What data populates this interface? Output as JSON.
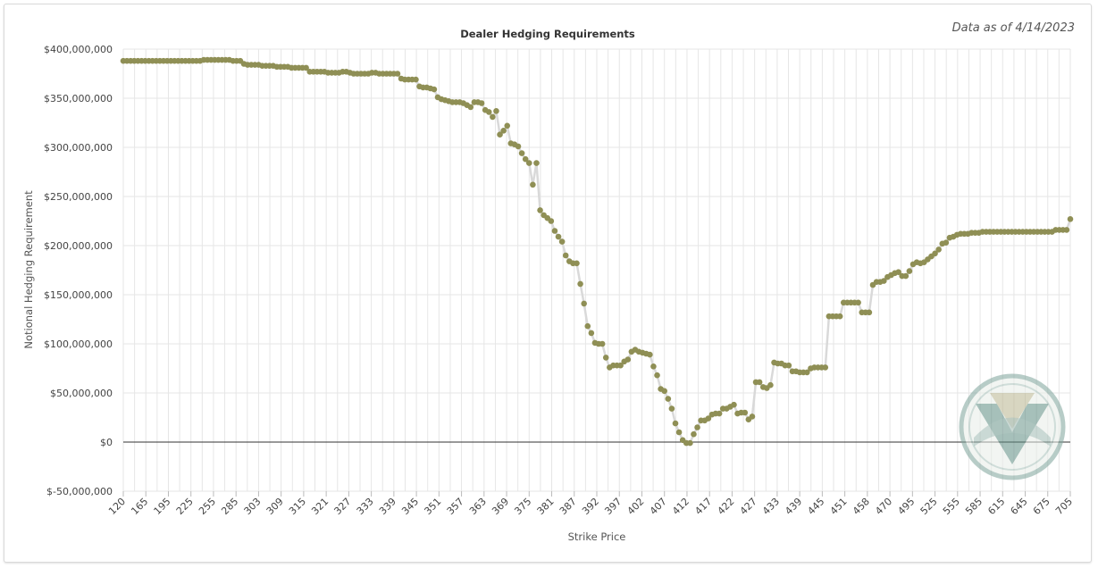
{
  "header": {
    "as_of": "Data as of 4/14/2023"
  },
  "chart_data": {
    "type": "line",
    "title": "Dealer Hedging Requirements",
    "xlabel": "Strike Price",
    "ylabel": "Notional Hedging Requirement",
    "ylim": [
      -50000000,
      400000000
    ],
    "y_ticks": [
      -50000000,
      0,
      50000000,
      100000000,
      150000000,
      200000000,
      250000000,
      300000000,
      350000000,
      400000000
    ],
    "y_tick_labels": [
      "$-50,000,000",
      "$0",
      "$50,000,000",
      "$100,000,000",
      "$150,000,000",
      "$200,000,000",
      "$250,000,000",
      "$300,000,000",
      "$350,000,000",
      "$400,000,000"
    ],
    "x_tick_labels": [
      "120",
      "165",
      "195",
      "225",
      "255",
      "285",
      "303",
      "309",
      "315",
      "321",
      "327",
      "333",
      "339",
      "345",
      "351",
      "357",
      "363",
      "369",
      "375",
      "381",
      "387",
      "392",
      "397",
      "402",
      "407",
      "412",
      "417",
      "422",
      "427",
      "433",
      "439",
      "445",
      "451",
      "458",
      "470",
      "495",
      "525",
      "555",
      "585",
      "615",
      "645",
      "675",
      "705"
    ],
    "grid": true,
    "zero_line": true,
    "colors": {
      "marker": "#8f8f55",
      "line": "#d9d9d9",
      "grid": "#e6e6e6"
    },
    "series": [
      {
        "values": [
          388,
          388,
          388,
          388,
          388,
          388,
          388,
          388,
          388,
          388,
          388,
          388,
          388,
          388,
          388,
          388,
          388,
          388,
          388,
          388,
          388,
          388,
          389,
          389,
          389,
          389,
          389,
          389,
          389,
          389,
          388,
          388,
          388,
          385,
          384,
          384,
          384,
          384,
          383,
          383,
          383,
          383,
          382,
          382,
          382,
          382,
          381,
          381,
          381,
          381,
          381,
          377,
          377,
          377,
          377,
          377,
          376,
          376,
          376,
          376,
          377,
          377,
          376,
          375,
          375,
          375,
          375,
          375,
          376,
          376,
          375,
          375,
          375,
          375,
          375,
          375,
          370,
          369,
          369,
          369,
          369,
          362,
          361,
          361,
          360,
          359,
          351,
          349,
          348,
          347,
          346,
          346,
          346,
          345,
          343,
          341,
          346,
          346,
          345,
          338,
          336,
          331,
          337,
          313,
          317,
          322,
          304,
          303,
          301,
          294,
          288,
          284,
          262,
          284,
          236,
          231,
          228,
          225,
          215,
          209,
          204,
          190,
          184,
          182,
          182,
          161,
          141,
          118,
          111,
          101,
          100,
          100,
          86,
          76,
          78,
          78,
          78,
          82,
          84,
          92,
          94,
          92,
          91,
          90,
          89,
          77,
          68,
          54,
          52,
          44,
          34,
          19,
          10,
          2,
          -1,
          -1,
          8,
          15,
          22,
          22,
          24,
          28,
          29,
          29,
          34,
          34,
          36,
          38,
          29,
          30,
          30,
          23,
          26,
          61,
          61,
          56,
          55,
          58,
          81,
          80,
          80,
          78,
          78,
          72,
          72,
          71,
          71,
          71,
          75,
          76,
          76,
          76,
          76,
          128,
          128,
          128,
          128,
          142,
          142,
          142,
          142,
          142,
          132,
          132,
          132,
          160,
          163,
          163,
          164,
          168,
          170,
          172,
          173,
          169,
          169,
          174,
          181,
          183,
          182,
          183,
          186,
          189,
          192,
          196,
          202,
          203,
          208,
          209,
          211,
          212,
          212,
          212,
          213,
          213,
          213,
          214,
          214,
          214,
          214,
          214,
          214,
          214,
          214,
          214,
          214,
          214,
          214,
          214,
          214,
          214,
          214,
          214,
          214,
          214,
          214,
          216,
          216,
          216,
          216,
          227
        ]
      }
    ]
  }
}
